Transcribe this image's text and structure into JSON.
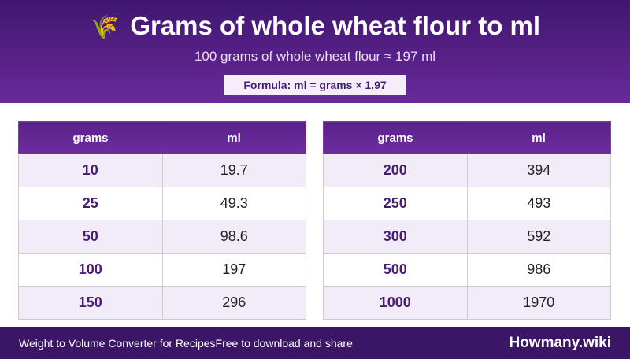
{
  "header": {
    "icon": "🌾",
    "title": "Grams of whole wheat flour to ml",
    "subtitle": "100 grams of whole wheat flour ≈ 197 ml",
    "formula": "Formula: ml = grams × 1.97"
  },
  "tables": [
    {
      "columns": [
        "grams",
        "ml"
      ],
      "rows": [
        [
          10,
          19.7
        ],
        [
          25,
          49.3
        ],
        [
          50,
          98.6
        ],
        [
          100,
          197
        ],
        [
          150,
          296
        ]
      ]
    },
    {
      "columns": [
        "grams",
        "ml"
      ],
      "rows": [
        [
          200,
          394
        ],
        [
          250,
          493
        ],
        [
          300,
          592
        ],
        [
          500,
          986
        ],
        [
          1000,
          1970
        ]
      ]
    }
  ],
  "footer": {
    "left": "Weight to Volume Converter for Recipes",
    "middle": "Free to download and share",
    "brand": "Howmany.wiki"
  }
}
